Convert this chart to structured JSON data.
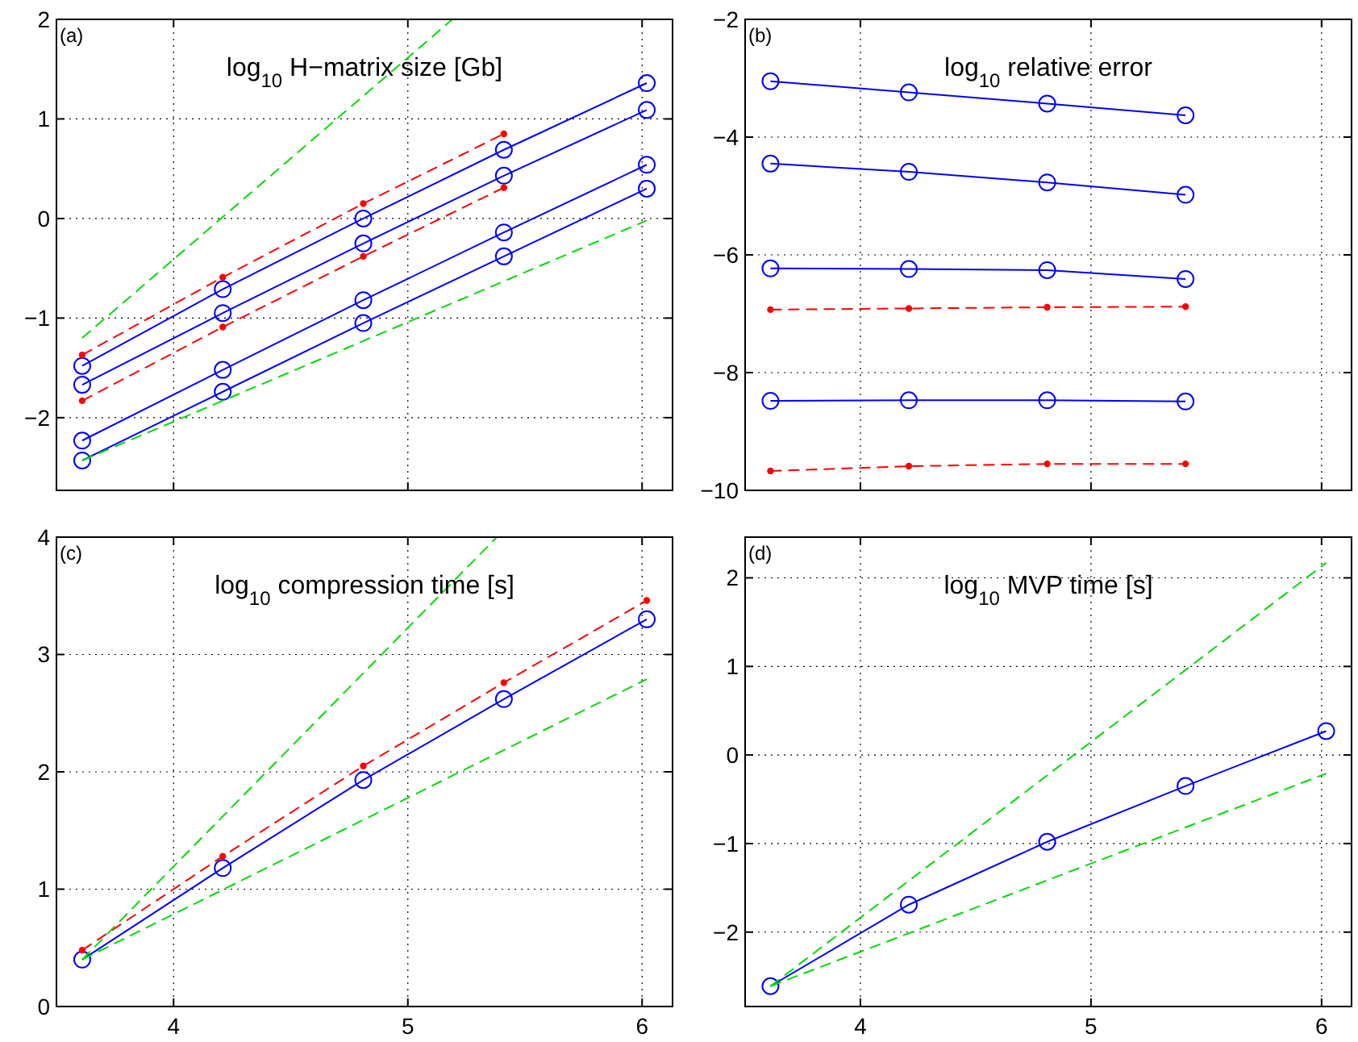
{
  "chart_data": [
    {
      "type": "line",
      "title": "log$_{10}$ H−matrix size [Gb]",
      "annotations": [
        "(a)"
      ],
      "xlim": [
        3.5,
        6.13
      ],
      "xticks": [
        4,
        5,
        6
      ],
      "ylim": [
        -2.73,
        2
      ],
      "yticks": [
        -2,
        -1,
        0,
        1,
        2
      ],
      "grid": true,
      "tick_labels": "y",
      "series": [
        {
          "color": "#0000ff",
          "marker": "circle",
          "line_style": "solid",
          "x": [
            3.61,
            4.21,
            4.81,
            5.41,
            6.02
          ],
          "values": [
            -1.48,
            -0.71,
            0.0,
            0.69,
            1.36
          ]
        },
        {
          "color": "#0000ff",
          "marker": "circle",
          "line_style": "solid",
          "x": [
            3.61,
            4.21,
            4.81,
            5.41,
            6.02
          ],
          "values": [
            -1.67,
            -0.95,
            -0.25,
            0.43,
            1.09
          ]
        },
        {
          "color": "#0000ff",
          "marker": "circle",
          "line_style": "solid",
          "x": [
            3.61,
            4.21,
            4.81,
            5.41,
            6.02
          ],
          "values": [
            -2.23,
            -1.52,
            -0.82,
            -0.14,
            0.54
          ]
        },
        {
          "color": "#0000ff",
          "marker": "circle",
          "line_style": "solid",
          "x": [
            3.61,
            4.21,
            4.81,
            5.41,
            6.02
          ],
          "values": [
            -2.43,
            -1.74,
            -1.05,
            -0.38,
            0.3
          ]
        },
        {
          "color": "#ff0000",
          "marker": "circle",
          "line_style": "dashed",
          "x": [
            3.61,
            4.21,
            4.81,
            5.41
          ],
          "values": [
            -1.37,
            -0.59,
            0.15,
            0.85
          ]
        },
        {
          "color": "#ff0000",
          "marker": "circle",
          "line_style": "dashed",
          "x": [
            3.61,
            4.21,
            4.81,
            5.41
          ],
          "values": [
            -1.83,
            -1.09,
            -0.38,
            0.31
          ]
        },
        {
          "color": "#00dd00",
          "marker": "none",
          "line_style": "dashed",
          "x": [
            3.61,
            5.19
          ],
          "values": [
            -1.2,
            2.0
          ]
        },
        {
          "color": "#00dd00",
          "marker": "none",
          "line_style": "dashed",
          "x": [
            3.61,
            6.02
          ],
          "values": [
            -2.43,
            -0.02
          ]
        }
      ]
    },
    {
      "type": "line",
      "title": "log$_{10}$ relative error",
      "annotations": [
        "(b)"
      ],
      "xlim": [
        3.5,
        6.13
      ],
      "xticks": [
        4,
        5,
        6
      ],
      "ylim": [
        -10,
        -2
      ],
      "yticks": [
        -10,
        -8,
        -6,
        -4,
        -2
      ],
      "grid": true,
      "tick_labels": "y",
      "series": [
        {
          "color": "#0000ff",
          "marker": "circle",
          "line_style": "solid",
          "x": [
            3.61,
            4.21,
            4.81,
            5.41
          ],
          "values": [
            -3.05,
            -3.24,
            -3.43,
            -3.63
          ]
        },
        {
          "color": "#0000ff",
          "marker": "circle",
          "line_style": "solid",
          "x": [
            3.61,
            4.21,
            4.81,
            5.41
          ],
          "values": [
            -4.45,
            -4.59,
            -4.77,
            -4.98
          ]
        },
        {
          "color": "#0000ff",
          "marker": "circle",
          "line_style": "solid",
          "x": [
            3.61,
            4.21,
            4.81,
            5.41
          ],
          "values": [
            -6.23,
            -6.24,
            -6.26,
            -6.41
          ]
        },
        {
          "color": "#0000ff",
          "marker": "circle",
          "line_style": "solid",
          "x": [
            3.61,
            4.21,
            4.81,
            5.41
          ],
          "values": [
            -8.48,
            -8.47,
            -8.47,
            -8.49
          ]
        },
        {
          "color": "#ff0000",
          "marker": "circle",
          "line_style": "dashed",
          "x": [
            3.61,
            4.21,
            4.81,
            5.41
          ],
          "values": [
            -6.93,
            -6.91,
            -6.89,
            -6.88
          ]
        },
        {
          "color": "#ff0000",
          "marker": "circle",
          "line_style": "dashed",
          "x": [
            3.61,
            4.21,
            4.81,
            5.41
          ],
          "values": [
            -9.67,
            -9.59,
            -9.55,
            -9.55
          ]
        }
      ]
    },
    {
      "type": "line",
      "title": "log$_{10}$ compression time [s]",
      "annotations": [
        "(c)"
      ],
      "xlim": [
        3.5,
        6.13
      ],
      "xticks": [
        4,
        5,
        6
      ],
      "ylim": [
        0,
        4
      ],
      "yticks": [
        0,
        1,
        2,
        3,
        4
      ],
      "grid": true,
      "series": [
        {
          "color": "#0000ff",
          "marker": "circle",
          "line_style": "solid",
          "x": [
            3.61,
            4.21,
            4.81,
            5.41,
            6.02
          ],
          "values": [
            0.4,
            1.18,
            1.93,
            2.62,
            3.3
          ]
        },
        {
          "color": "#ff0000",
          "marker": "circle",
          "line_style": "dashed",
          "x": [
            3.61,
            4.21,
            4.81,
            5.41,
            6.02
          ],
          "values": [
            0.48,
            1.28,
            2.05,
            2.76,
            3.46
          ]
        },
        {
          "color": "#00dd00",
          "marker": "none",
          "line_style": "dashed",
          "x": [
            3.61,
            5.38
          ],
          "values": [
            0.4,
            4.0
          ]
        },
        {
          "color": "#00dd00",
          "marker": "none",
          "line_style": "dashed",
          "x": [
            3.61,
            6.02
          ],
          "values": [
            0.4,
            2.79
          ]
        }
      ]
    },
    {
      "type": "line",
      "title": "log$_{10}$ MVP time [s]",
      "annotations": [
        "(d)"
      ],
      "xlim": [
        3.5,
        6.13
      ],
      "xticks": [
        4,
        5,
        6
      ],
      "ylim": [
        -2.84,
        2.46
      ],
      "yticks": [
        -2,
        -1,
        0,
        1,
        2
      ],
      "grid": true,
      "series": [
        {
          "color": "#0000ff",
          "marker": "circle",
          "line_style": "solid",
          "x": [
            3.61,
            4.21,
            4.81,
            5.41,
            6.02
          ],
          "values": [
            -2.61,
            -1.69,
            -0.98,
            -0.35,
            0.27
          ]
        },
        {
          "color": "#00dd00",
          "marker": "none",
          "line_style": "dashed",
          "x": [
            3.61,
            6.02
          ],
          "values": [
            -2.61,
            2.17
          ]
        },
        {
          "color": "#00dd00",
          "marker": "none",
          "line_style": "dashed",
          "x": [
            3.61,
            6.02
          ],
          "values": [
            -2.61,
            -0.21
          ]
        }
      ]
    }
  ]
}
